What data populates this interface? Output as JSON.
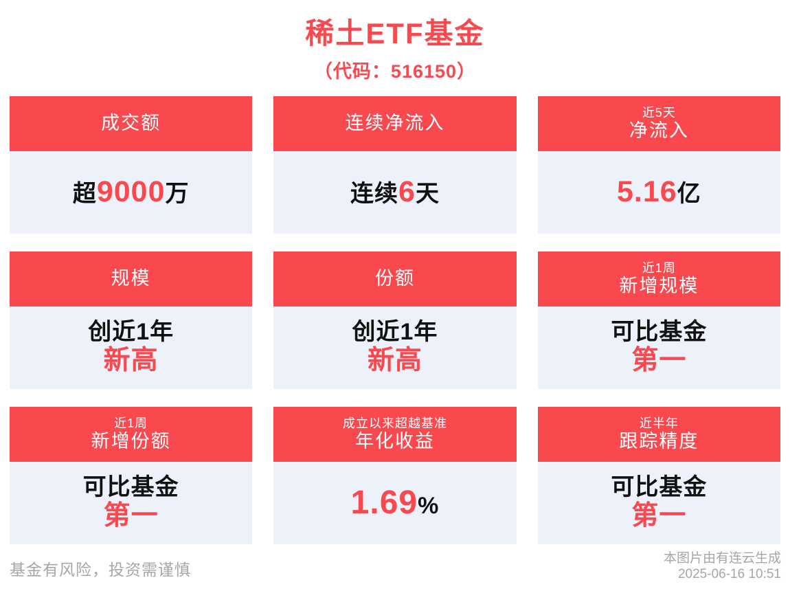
{
  "page": {
    "title": "稀土ETF基金",
    "subtitle": "（代码：516150）"
  },
  "colors": {
    "accent": "#f9494f",
    "card_body_bg": "#edf1fa",
    "dark_text": "#111111",
    "footer_gray": "#a6a6a6",
    "page_bg": "#ffffff"
  },
  "cards": [
    {
      "id": "turnover",
      "header_lines": [
        {
          "text": "成交额",
          "size": "main"
        }
      ],
      "body_lines": [
        {
          "segments": [
            {
              "text": "超",
              "color": "dark",
              "size": "md"
            },
            {
              "text": "9000",
              "color": "red",
              "size": "xl"
            },
            {
              "text": "万",
              "color": "dark",
              "size": "md"
            }
          ]
        }
      ]
    },
    {
      "id": "net-inflow-streak",
      "header_lines": [
        {
          "text": "连续净流入",
          "size": "main"
        }
      ],
      "body_lines": [
        {
          "segments": [
            {
              "text": "连续",
              "color": "dark",
              "size": "md"
            },
            {
              "text": "6",
              "color": "red",
              "size": "xl"
            },
            {
              "text": "天",
              "color": "dark",
              "size": "md"
            }
          ]
        }
      ]
    },
    {
      "id": "net-inflow-5d",
      "header_lines": [
        {
          "text": "近5天",
          "size": "small"
        },
        {
          "text": "净流入",
          "size": "main"
        }
      ],
      "body_lines": [
        {
          "segments": [
            {
              "text": "5.16",
              "color": "red",
              "size": "xl"
            },
            {
              "text": "亿",
              "color": "dark",
              "size": "md"
            }
          ]
        }
      ]
    },
    {
      "id": "scale",
      "header_lines": [
        {
          "text": "规模",
          "size": "main"
        }
      ],
      "body_lines": [
        {
          "segments": [
            {
              "text": "创近1年",
              "color": "dark",
              "size": "md"
            }
          ]
        },
        {
          "segments": [
            {
              "text": "新高",
              "color": "red",
              "size": "lg"
            }
          ]
        }
      ]
    },
    {
      "id": "shares",
      "header_lines": [
        {
          "text": "份额",
          "size": "main"
        }
      ],
      "body_lines": [
        {
          "segments": [
            {
              "text": "创近1年",
              "color": "dark",
              "size": "md"
            }
          ]
        },
        {
          "segments": [
            {
              "text": "新高",
              "color": "red",
              "size": "lg"
            }
          ]
        }
      ]
    },
    {
      "id": "new-scale-1w",
      "header_lines": [
        {
          "text": "近1周",
          "size": "small"
        },
        {
          "text": "新增规模",
          "size": "main"
        }
      ],
      "body_lines": [
        {
          "segments": [
            {
              "text": "可比基金",
              "color": "dark",
              "size": "md"
            }
          ]
        },
        {
          "segments": [
            {
              "text": "第一",
              "color": "red",
              "size": "lg"
            }
          ]
        }
      ]
    },
    {
      "id": "new-shares-1w",
      "header_lines": [
        {
          "text": "近1周",
          "size": "small"
        },
        {
          "text": "新增份额",
          "size": "main"
        }
      ],
      "body_lines": [
        {
          "segments": [
            {
              "text": "可比基金",
              "color": "dark",
              "size": "md"
            }
          ]
        },
        {
          "segments": [
            {
              "text": "第一",
              "color": "red",
              "size": "lg"
            }
          ]
        }
      ]
    },
    {
      "id": "annualized-excess-return",
      "header_lines": [
        {
          "text": "成立以来超越基准",
          "size": "small"
        },
        {
          "text": "年化收益",
          "size": "main"
        }
      ],
      "body_lines": [
        {
          "segments": [
            {
              "text": "1.69",
              "color": "red",
              "size": "xxl"
            },
            {
              "text": "%",
              "color": "dark",
              "size": "md"
            }
          ]
        }
      ]
    },
    {
      "id": "tracking-precision-6m",
      "header_lines": [
        {
          "text": "近半年",
          "size": "small"
        },
        {
          "text": "跟踪精度",
          "size": "main"
        }
      ],
      "body_lines": [
        {
          "segments": [
            {
              "text": "可比基金",
              "color": "dark",
              "size": "md"
            }
          ]
        },
        {
          "segments": [
            {
              "text": "第一",
              "color": "red",
              "size": "lg"
            }
          ]
        }
      ]
    }
  ],
  "footer": {
    "disclaimer": "基金有风险，投资需谨慎",
    "generator": "本图片由有连云生成",
    "timestamp": "2025-06-16 10:51"
  }
}
